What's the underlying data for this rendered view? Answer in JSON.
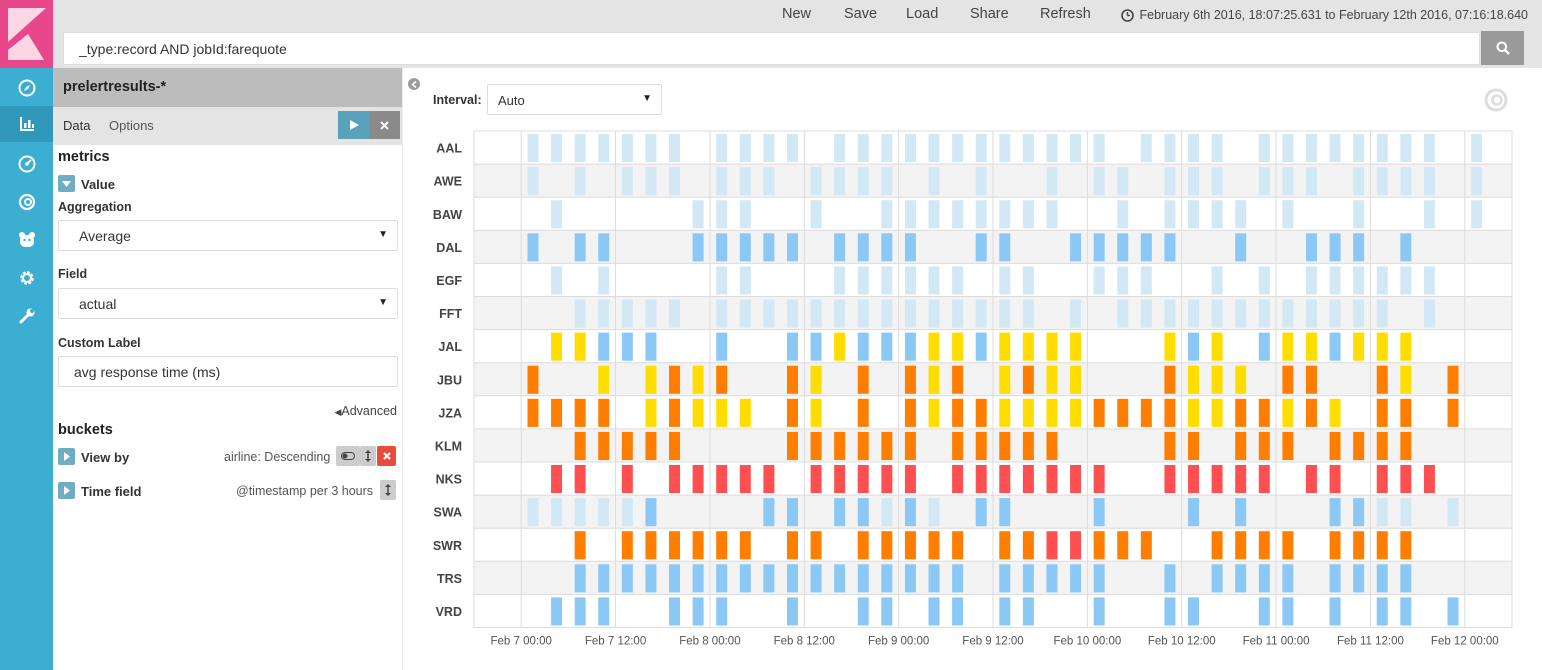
{
  "topbar": {
    "new_label": "New",
    "save_label": "Save",
    "load_label": "Load",
    "share_label": "Share",
    "refresh_label": "Refresh",
    "time_range": "February 6th 2016, 18:07:25.631 to February 12th 2016, 07:16:18.640",
    "query": "_type:record AND jobId:farequote"
  },
  "sidebar": {
    "index_pattern": "prelertresults-*",
    "tabs": [
      "Data",
      "Options"
    ],
    "metrics_title": "metrics",
    "metric_name": "Value",
    "aggregation_label": "Aggregation",
    "aggregation_value": "Average",
    "field_label": "Field",
    "field_value": "actual",
    "custom_label_label": "Custom Label",
    "custom_label_value": "avg response time (ms)",
    "advanced_label": "Advanced",
    "buckets_title": "buckets",
    "bucket_view_by": "View by",
    "bucket_view_by_desc": "airline: Descending",
    "bucket_time_field": "Time field",
    "bucket_time_field_desc": "@timestamp per 3 hours"
  },
  "main": {
    "interval_label": "Interval:",
    "interval_value": "Auto"
  },
  "colors": {
    "nav_bg": "#3caed2",
    "logo_bg": "#e8488b",
    "pale_blue": "#d2e8f5",
    "blue": "#8cc8f5",
    "yellow": "#ffdd00",
    "orange": "#ff7e00",
    "red": "#fe5050"
  },
  "chart_data": {
    "type": "heatmap",
    "title": "",
    "xlabel": "",
    "ylabel": "",
    "rows": [
      "AAL",
      "AWE",
      "BAW",
      "DAL",
      "EGF",
      "FFT",
      "JAL",
      "JBU",
      "JZA",
      "KLM",
      "NKS",
      "SWA",
      "SWR",
      "TRS",
      "VRD"
    ],
    "x_start": 0,
    "x_step_hours": 3,
    "x_ticks": [
      {
        "label": "Feb 7 00:00",
        "at_hour": 0
      },
      {
        "label": "Feb 7 12:00",
        "at_hour": 12
      },
      {
        "label": "Feb 8 00:00",
        "at_hour": 24
      },
      {
        "label": "Feb 8 12:00",
        "at_hour": 36
      },
      {
        "label": "Feb 9 00:00",
        "at_hour": 48
      },
      {
        "label": "Feb 9 12:00",
        "at_hour": 60
      },
      {
        "label": "Feb 10 00:00",
        "at_hour": 72
      },
      {
        "label": "Feb 10 12:00",
        "at_hour": 84
      },
      {
        "label": "Feb 11 00:00",
        "at_hour": 96
      },
      {
        "label": "Feb 11 12:00",
        "at_hour": 108
      },
      {
        "label": "Feb 12 00:00",
        "at_hour": 120
      }
    ],
    "x_range_hours": [
      -6,
      126
    ],
    "first_slot_hour": 1.5,
    "legend": {
      "0": "pale-blue",
      "1": "blue",
      "2": "yellow",
      "3": "orange",
      "4": "red"
    },
    "note": "cells: 0 = none, 1 = pale blue, 2 = blue, 3 = yellow, 4 = orange, 5 = red; one column per 3-hour slot",
    "cells": [
      [
        1,
        1,
        1,
        1,
        1,
        1,
        1,
        0,
        1,
        1,
        1,
        1,
        0,
        1,
        1,
        1,
        1,
        1,
        1,
        1,
        1,
        1,
        1,
        1,
        1,
        0,
        1,
        1,
        1,
        1,
        0,
        1,
        1,
        1,
        1,
        1,
        1,
        1,
        1,
        0,
        1,
        0
      ],
      [
        1,
        0,
        1,
        0,
        1,
        1,
        1,
        0,
        1,
        1,
        1,
        0,
        1,
        1,
        1,
        1,
        0,
        1,
        0,
        1,
        0,
        0,
        1,
        0,
        1,
        1,
        0,
        1,
        1,
        1,
        0,
        1,
        1,
        1,
        0,
        1,
        1,
        1,
        1,
        0,
        1,
        0
      ],
      [
        0,
        1,
        0,
        0,
        0,
        0,
        0,
        1,
        1,
        1,
        0,
        0,
        1,
        0,
        0,
        1,
        1,
        1,
        1,
        1,
        1,
        1,
        1,
        0,
        0,
        1,
        0,
        1,
        1,
        1,
        1,
        0,
        1,
        0,
        0,
        1,
        0,
        0,
        1,
        0,
        1,
        0
      ],
      [
        2,
        0,
        2,
        2,
        0,
        0,
        0,
        2,
        2,
        2,
        2,
        2,
        0,
        2,
        2,
        2,
        2,
        0,
        0,
        2,
        2,
        0,
        0,
        2,
        2,
        2,
        2,
        2,
        0,
        0,
        2,
        0,
        0,
        2,
        2,
        2,
        0,
        2,
        0,
        0,
        0,
        0
      ],
      [
        0,
        1,
        0,
        1,
        0,
        0,
        0,
        0,
        1,
        1,
        0,
        0,
        0,
        1,
        1,
        1,
        1,
        1,
        1,
        0,
        1,
        1,
        0,
        0,
        1,
        1,
        1,
        0,
        0,
        1,
        0,
        1,
        0,
        1,
        1,
        1,
        1,
        1,
        1,
        0,
        0,
        0
      ],
      [
        0,
        0,
        1,
        1,
        1,
        1,
        1,
        0,
        1,
        1,
        1,
        1,
        1,
        1,
        1,
        1,
        1,
        1,
        1,
        1,
        1,
        1,
        0,
        1,
        0,
        1,
        1,
        1,
        1,
        1,
        1,
        1,
        1,
        1,
        1,
        1,
        1,
        0,
        1,
        0,
        0,
        0
      ],
      [
        0,
        3,
        3,
        2,
        2,
        2,
        0,
        0,
        2,
        0,
        0,
        2,
        2,
        3,
        2,
        2,
        2,
        3,
        3,
        2,
        3,
        3,
        3,
        3,
        0,
        0,
        0,
        3,
        2,
        3,
        0,
        2,
        3,
        3,
        2,
        3,
        3,
        3,
        0,
        0,
        0,
        0
      ],
      [
        4,
        0,
        0,
        3,
        0,
        3,
        4,
        3,
        4,
        0,
        0,
        4,
        3,
        0,
        4,
        0,
        4,
        3,
        4,
        0,
        3,
        4,
        3,
        3,
        0,
        0,
        0,
        4,
        3,
        3,
        3,
        0,
        4,
        4,
        0,
        0,
        4,
        3,
        0,
        4,
        0,
        0
      ],
      [
        4,
        4,
        4,
        4,
        0,
        3,
        4,
        3,
        3,
        3,
        0,
        4,
        3,
        0,
        4,
        0,
        4,
        3,
        4,
        4,
        3,
        3,
        3,
        3,
        4,
        4,
        4,
        4,
        3,
        3,
        4,
        4,
        3,
        4,
        3,
        0,
        4,
        4,
        0,
        4,
        0,
        0
      ],
      [
        0,
        0,
        4,
        4,
        4,
        4,
        4,
        0,
        0,
        0,
        0,
        4,
        4,
        4,
        4,
        4,
        4,
        0,
        4,
        4,
        4,
        4,
        4,
        0,
        0,
        0,
        0,
        4,
        4,
        0,
        4,
        4,
        4,
        0,
        4,
        4,
        4,
        4,
        0,
        0,
        0,
        0
      ],
      [
        0,
        5,
        5,
        0,
        5,
        0,
        5,
        5,
        5,
        5,
        5,
        0,
        5,
        5,
        5,
        5,
        5,
        0,
        5,
        5,
        5,
        5,
        5,
        5,
        5,
        0,
        0,
        5,
        5,
        5,
        5,
        5,
        0,
        5,
        5,
        0,
        5,
        5,
        5,
        0,
        0,
        0
      ],
      [
        1,
        1,
        1,
        1,
        1,
        2,
        0,
        0,
        0,
        0,
        2,
        2,
        0,
        2,
        2,
        1,
        2,
        1,
        0,
        2,
        2,
        0,
        0,
        0,
        2,
        0,
        0,
        0,
        2,
        0,
        2,
        0,
        0,
        0,
        2,
        2,
        1,
        1,
        0,
        1,
        0,
        0
      ],
      [
        0,
        0,
        4,
        0,
        4,
        4,
        4,
        4,
        4,
        4,
        0,
        4,
        4,
        0,
        4,
        4,
        4,
        4,
        4,
        0,
        4,
        4,
        5,
        5,
        4,
        4,
        4,
        0,
        0,
        4,
        4,
        4,
        4,
        0,
        4,
        4,
        4,
        4,
        0,
        0,
        0,
        0
      ],
      [
        0,
        0,
        2,
        2,
        2,
        2,
        2,
        2,
        2,
        2,
        2,
        2,
        2,
        2,
        2,
        2,
        2,
        2,
        2,
        0,
        2,
        2,
        2,
        2,
        2,
        0,
        0,
        2,
        0,
        2,
        2,
        2,
        2,
        0,
        2,
        2,
        2,
        2,
        0,
        0,
        0,
        0
      ],
      [
        0,
        2,
        2,
        2,
        0,
        0,
        2,
        2,
        2,
        0,
        0,
        2,
        0,
        0,
        2,
        2,
        0,
        2,
        2,
        0,
        2,
        2,
        0,
        0,
        2,
        0,
        0,
        2,
        2,
        0,
        0,
        2,
        2,
        0,
        2,
        0,
        2,
        2,
        0,
        2,
        0,
        0
      ]
    ]
  }
}
